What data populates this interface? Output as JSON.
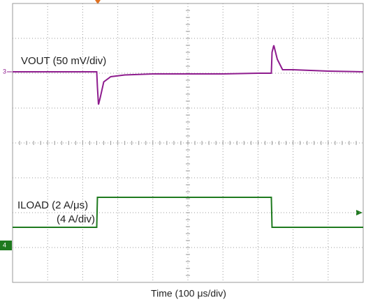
{
  "chart_data": {
    "type": "line",
    "x_label": "Time (100 μs/div)",
    "x": [
      0,
      2.4,
      2.42,
      2.45,
      2.5,
      2.6,
      2.8,
      3.2,
      4,
      5,
      6,
      7,
      7.38,
      7.4,
      7.45,
      7.55,
      7.7,
      8,
      9,
      10
    ],
    "xlim": [
      0,
      10
    ],
    "ylim": [
      0,
      8
    ],
    "grid": true,
    "series": [
      {
        "name": "VOUT (50 mV/div)",
        "color": "#8e1c8e",
        "marker": "3",
        "values": [
          6.04,
          6.04,
          5.6,
          5.1,
          5.3,
          5.75,
          5.9,
          5.95,
          5.98,
          5.98,
          5.98,
          6.0,
          6.0,
          6.6,
          6.8,
          6.4,
          6.1,
          6.1,
          6.06,
          6.04
        ]
      },
      {
        "name": "ILOAD (2 A/μs)",
        "name_line2": "(4 A/div)",
        "color": "#1e7a1e",
        "marker": "4",
        "values": [
          1.58,
          1.58,
          2.44,
          2.44,
          2.44,
          2.44,
          2.44,
          2.44,
          2.44,
          2.44,
          2.44,
          2.44,
          2.44,
          1.58,
          1.58,
          1.58,
          1.58,
          1.58,
          1.58,
          1.58
        ]
      }
    ]
  }
}
